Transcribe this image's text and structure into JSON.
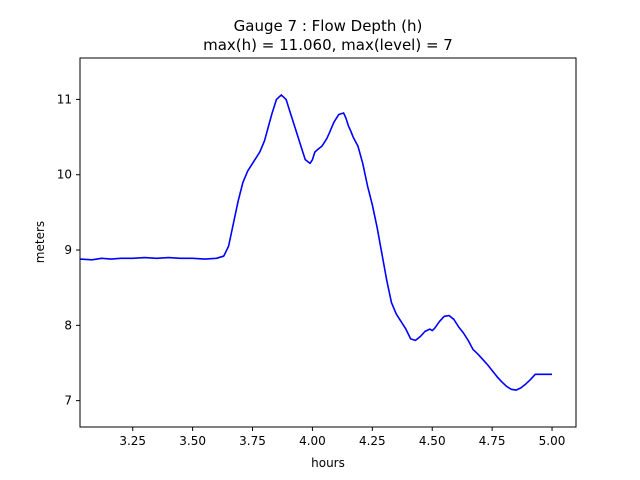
{
  "chart_data": {
    "type": "line",
    "title": "Gauge 7 : Flow Depth (h)",
    "subtitle": "max(h) =  11.060,    max(level) = 7",
    "xlabel": "hours",
    "ylabel": "meters",
    "xlim": [
      3.03,
      5.1
    ],
    "ylim": [
      6.65,
      11.55
    ],
    "xticks": [
      3.25,
      3.5,
      3.75,
      4.0,
      4.25,
      4.5,
      4.75,
      5.0
    ],
    "xtick_labels": [
      "3.25",
      "3.50",
      "3.75",
      "4.00",
      "4.25",
      "4.50",
      "4.75",
      "5.00"
    ],
    "yticks": [
      7,
      8,
      9,
      10,
      11
    ],
    "ytick_labels": [
      "7",
      "8",
      "9",
      "10",
      "11"
    ],
    "grid": false,
    "series": [
      {
        "color": "#0000ff",
        "x": [
          3.03,
          3.08,
          3.12,
          3.16,
          3.2,
          3.25,
          3.3,
          3.35,
          3.4,
          3.45,
          3.5,
          3.55,
          3.6,
          3.63,
          3.65,
          3.67,
          3.69,
          3.71,
          3.73,
          3.75,
          3.78,
          3.8,
          3.83,
          3.85,
          3.87,
          3.89,
          3.91,
          3.93,
          3.95,
          3.97,
          3.99,
          4.0,
          4.01,
          4.02,
          4.04,
          4.06,
          4.07,
          4.09,
          4.11,
          4.13,
          4.14,
          4.15,
          4.16,
          4.17,
          4.19,
          4.21,
          4.23,
          4.25,
          4.27,
          4.29,
          4.31,
          4.33,
          4.35,
          4.37,
          4.39,
          4.41,
          4.43,
          4.45,
          4.47,
          4.49,
          4.5,
          4.51,
          4.53,
          4.55,
          4.57,
          4.59,
          4.61,
          4.63,
          4.65,
          4.67,
          4.69,
          4.71,
          4.73,
          4.75,
          4.77,
          4.79,
          4.81,
          4.83,
          4.85,
          4.87,
          4.89,
          4.91,
          4.93,
          4.95,
          4.97,
          4.99,
          5.0
        ],
        "y": [
          8.88,
          8.87,
          8.89,
          8.88,
          8.89,
          8.89,
          8.9,
          8.89,
          8.9,
          8.89,
          8.89,
          8.88,
          8.89,
          8.92,
          9.05,
          9.35,
          9.65,
          9.9,
          10.05,
          10.15,
          10.3,
          10.45,
          10.8,
          11.0,
          11.06,
          11.0,
          10.8,
          10.6,
          10.4,
          10.2,
          10.15,
          10.2,
          10.3,
          10.33,
          10.38,
          10.48,
          10.55,
          10.7,
          10.8,
          10.82,
          10.75,
          10.65,
          10.58,
          10.5,
          10.38,
          10.15,
          9.85,
          9.6,
          9.3,
          8.95,
          8.6,
          8.3,
          8.15,
          8.05,
          7.95,
          7.82,
          7.8,
          7.85,
          7.92,
          7.95,
          7.93,
          7.96,
          8.05,
          8.12,
          8.13,
          8.08,
          7.98,
          7.9,
          7.8,
          7.68,
          7.62,
          7.55,
          7.48,
          7.4,
          7.32,
          7.25,
          7.19,
          7.15,
          7.14,
          7.17,
          7.22,
          7.28,
          7.35,
          7.35,
          7.35,
          7.35,
          7.35
        ]
      }
    ]
  }
}
